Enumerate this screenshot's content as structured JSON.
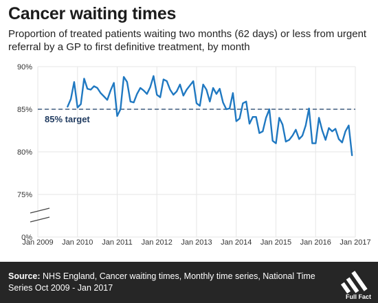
{
  "title": "Cancer waiting times",
  "subtitle": "Proportion of treated patients waiting two months (62 days) or less from urgent referral by a GP to first definitive treatment, by month",
  "footer": {
    "source_label": "Source:",
    "source_text": " NHS England, Cancer waiting times, Monthly time series, National Time Series Oct 2009 - Jan 2017",
    "logo_text": "Full Fact"
  },
  "colors": {
    "line": "#1f78c1",
    "target": "#5a7390",
    "grid": "#e6e6e6",
    "footer_bg": "#262626"
  },
  "chart_data": {
    "type": "line",
    "title": "Cancer waiting times",
    "xlabel": "",
    "ylabel": "",
    "x_ticks": [
      "Jan 2009",
      "Jan 2010",
      "Jan 2011",
      "Jan 2012",
      "Jan 2013",
      "Jan 2014",
      "Jan 2015",
      "Jan 2016",
      "Jan 2017"
    ],
    "y_ticks": [
      "0%",
      "75%",
      "80%",
      "85%",
      "90%"
    ],
    "ylim": [
      75,
      90
    ],
    "axis_break": true,
    "grid": true,
    "start_month": "2009-10",
    "reference_line": {
      "value": 85,
      "label": "85% target",
      "style": "dashed"
    },
    "series": [
      {
        "values": [
          85.3,
          86.2,
          88.2,
          85.2,
          85.6,
          88.6,
          87.4,
          87.3,
          87.7,
          87.5,
          86.9,
          86.5,
          86.1,
          87.2,
          88.1,
          84.2,
          85.0,
          88.8,
          88.2,
          85.9,
          85.8,
          86.8,
          87.5,
          87.2,
          86.8,
          87.6,
          88.9,
          86.7,
          86.4,
          88.5,
          88.3,
          87.3,
          86.7,
          87.1,
          87.9,
          86.6,
          87.3,
          87.8,
          88.3,
          85.7,
          85.4,
          87.9,
          87.3,
          85.9,
          87.5,
          86.8,
          87.4,
          85.8,
          85.0,
          85.1,
          86.9,
          83.6,
          83.9,
          85.7,
          85.9,
          83.3,
          84.1,
          84.1,
          82.2,
          82.4,
          84.0,
          85.0,
          81.3,
          81.0,
          84.0,
          83.2,
          81.2,
          81.4,
          81.9,
          82.6,
          81.5,
          81.9,
          83.1,
          85.1,
          81.0,
          81.0,
          84.0,
          82.5,
          81.4,
          82.8,
          82.4,
          82.7,
          81.5,
          81.1,
          82.4,
          83.1,
          79.6
        ]
      }
    ]
  }
}
